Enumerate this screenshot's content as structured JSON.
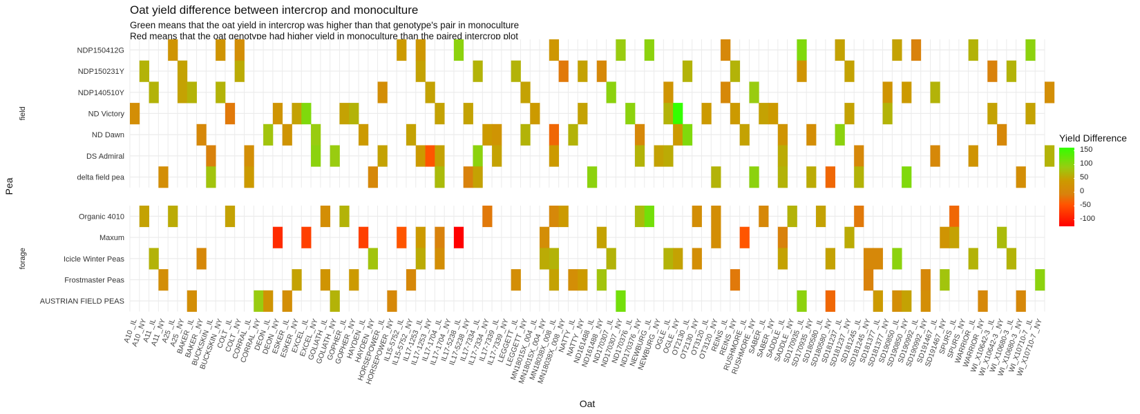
{
  "chart_data": {
    "type": "heatmap",
    "title": "Oat yield difference between intercrop and monoculture",
    "subtitle_lines": [
      "Green means that the oat yield in intercrop was higher than that genotype's pair in monoculture",
      "Red means that the oat genotype had higher yield in monoculture than the paired intercrop plot"
    ],
    "xlabel": "Oat",
    "ylabel": "Pea",
    "x_categories": [
      "A10 _IL",
      "A10 _NY",
      "A11 _IL",
      "A11 _NY",
      "A25 _IL",
      "A25 _NY",
      "BAKER _IL",
      "BAKER _NY",
      "BUCKSKIN _IL",
      "BUCKSKIN _NY",
      "COLT _IL",
      "COLT _NY",
      "CORRAL _IL",
      "CORRAL _NY",
      "DEON _IL",
      "DEON _NY",
      "ESKER _IL",
      "ESKER _NY",
      "EXCEL _IL",
      "EXCEL _NY",
      "GOLIATH _IL",
      "GOLIATH _NY",
      "GOPHER _IL",
      "GOPHER _NY",
      "HAYDEN _IL",
      "HAYDEN _NY",
      "HORSEPOWER _IL",
      "HORSEPOWER _NY",
      "IL15-5752 _IL",
      "IL15-5752 _NY",
      "IL17-1253 _IL",
      "IL17-1253 _NY",
      "IL17-1704 _IL",
      "IL17-1704 _NY",
      "IL17-5238 _IL",
      "IL17-5238 _NY",
      "IL17-7334 _IL",
      "IL17-7334 _NY",
      "IL17-7339 _IL",
      "IL17-7339 _NY",
      "LEGGETT _IL",
      "LEGGETT _NY",
      "MN18015X_004 _IL",
      "MN18015X_004 _NY",
      "MN18038X_008 _IL",
      "MN18038X_008 _NY",
      "NATTY _IL",
      "NATTY _NY",
      "ND161488 _IL",
      "ND161488 _NY",
      "ND170307 _IL",
      "ND170307 _NY",
      "ND170376 _IL",
      "ND170376 _NY",
      "NEWBURG _IL",
      "NEWBURG _NY",
      "OGLE _IL",
      "OGLE _NY",
      "OT2130 _IL",
      "OT2130 _NY",
      "OT3120 _IL",
      "OT3120 _NY",
      "REINS _IL",
      "REINS _NY",
      "RUSHMORE _IL",
      "RUSHMORE _NY",
      "SABER _IL",
      "SABER _NY",
      "SADDLE _IL",
      "SADDLE _NY",
      "SD170935 _IL",
      "SD170935 _NY",
      "SD180580 _IL",
      "SD180580 _NY",
      "SD181237 _IL",
      "SD181237 _NY",
      "SD181245 _IL",
      "SD181245 _NY",
      "SD181377 _IL",
      "SD181377 _NY",
      "SD190850 _IL",
      "SD190850 _NY",
      "SD190992 _IL",
      "SD190992 _NY",
      "SD191467 _IL",
      "SD191467 _NY",
      "SPURS _IL",
      "SPURS _NY",
      "WARRIOR _IL",
      "WARRIOR _NY",
      "WI_X10642-3 _IL",
      "WI_X10642-3 _NY",
      "WI_X10680-3 _IL",
      "WI_X10680-3 _NY",
      "WI_X10710-7 _IL",
      "WI_X10710-7 _NY"
    ],
    "facets": [
      {
        "label": "field",
        "rows": [
          "NDP150412G",
          "NDP150231Y",
          "NDP140510Y",
          "ND Victory",
          "ND Dawn",
          "DS Admiral",
          "delta field pea"
        ],
        "cells": [
          [
            0,
            4,
            0
          ],
          [
            0,
            9,
            0
          ],
          [
            0,
            11,
            -10
          ],
          [
            0,
            28,
            10
          ],
          [
            0,
            30,
            5
          ],
          [
            0,
            34,
            80
          ],
          [
            0,
            44,
            5
          ],
          [
            0,
            51,
            70
          ],
          [
            0,
            54,
            80
          ],
          [
            0,
            62,
            -20
          ],
          [
            0,
            70,
            90
          ],
          [
            0,
            74,
            20
          ],
          [
            0,
            80,
            20
          ],
          [
            0,
            82,
            -30
          ],
          [
            0,
            88,
            40
          ],
          [
            0,
            94,
            80
          ],
          [
            1,
            1,
            40
          ],
          [
            1,
            5,
            20
          ],
          [
            1,
            11,
            30
          ],
          [
            1,
            30,
            20
          ],
          [
            1,
            36,
            40
          ],
          [
            1,
            40,
            40
          ],
          [
            1,
            45,
            -40
          ],
          [
            1,
            47,
            20
          ],
          [
            1,
            49,
            -20
          ],
          [
            1,
            58,
            40
          ],
          [
            1,
            63,
            40
          ],
          [
            1,
            70,
            0
          ],
          [
            1,
            75,
            20
          ],
          [
            1,
            90,
            -30
          ],
          [
            1,
            92,
            40
          ],
          [
            2,
            2,
            40
          ],
          [
            2,
            5,
            20
          ],
          [
            2,
            6,
            40
          ],
          [
            2,
            9,
            40
          ],
          [
            2,
            26,
            -10
          ],
          [
            2,
            31,
            20
          ],
          [
            2,
            41,
            20
          ],
          [
            2,
            50,
            80
          ],
          [
            2,
            56,
            0
          ],
          [
            2,
            62,
            -20
          ],
          [
            2,
            65,
            70
          ],
          [
            2,
            79,
            0
          ],
          [
            2,
            81,
            10
          ],
          [
            2,
            84,
            40
          ],
          [
            2,
            96,
            -10
          ],
          [
            3,
            0,
            -10
          ],
          [
            3,
            10,
            -40
          ],
          [
            3,
            15,
            0
          ],
          [
            3,
            17,
            20
          ],
          [
            3,
            18,
            90
          ],
          [
            3,
            22,
            20
          ],
          [
            3,
            23,
            40
          ],
          [
            3,
            32,
            20
          ],
          [
            3,
            35,
            20
          ],
          [
            3,
            42,
            10
          ],
          [
            3,
            47,
            20
          ],
          [
            3,
            52,
            80
          ],
          [
            3,
            56,
            40
          ],
          [
            3,
            57,
            150
          ],
          [
            3,
            60,
            10
          ],
          [
            3,
            63,
            10
          ],
          [
            3,
            66,
            20
          ],
          [
            3,
            67,
            10
          ],
          [
            3,
            75,
            20
          ],
          [
            3,
            79,
            40
          ],
          [
            3,
            90,
            20
          ],
          [
            3,
            94,
            20
          ],
          [
            4,
            7,
            -20
          ],
          [
            4,
            14,
            60
          ],
          [
            4,
            16,
            0
          ],
          [
            4,
            19,
            70
          ],
          [
            4,
            24,
            10
          ],
          [
            4,
            29,
            20
          ],
          [
            4,
            37,
            10
          ],
          [
            4,
            38,
            0
          ],
          [
            4,
            41,
            40
          ],
          [
            4,
            44,
            -60
          ],
          [
            4,
            46,
            40
          ],
          [
            4,
            53,
            -20
          ],
          [
            4,
            57,
            10
          ],
          [
            4,
            58,
            90
          ],
          [
            4,
            64,
            20
          ],
          [
            4,
            68,
            0
          ],
          [
            4,
            71,
            -10
          ],
          [
            4,
            74,
            80
          ],
          [
            4,
            91,
            -20
          ],
          [
            5,
            8,
            -30
          ],
          [
            5,
            12,
            -10
          ],
          [
            5,
            19,
            80
          ],
          [
            5,
            21,
            70
          ],
          [
            5,
            26,
            20
          ],
          [
            5,
            30,
            10
          ],
          [
            5,
            31,
            -80
          ],
          [
            5,
            32,
            20
          ],
          [
            5,
            36,
            80
          ],
          [
            5,
            38,
            20
          ],
          [
            5,
            44,
            10
          ],
          [
            5,
            53,
            40
          ],
          [
            5,
            55,
            20
          ],
          [
            5,
            56,
            30
          ],
          [
            5,
            68,
            30
          ],
          [
            5,
            76,
            -20
          ],
          [
            5,
            84,
            -20
          ],
          [
            5,
            88,
            0
          ],
          [
            5,
            96,
            40
          ],
          [
            6,
            3,
            -10
          ],
          [
            6,
            8,
            60
          ],
          [
            6,
            12,
            10
          ],
          [
            6,
            25,
            -20
          ],
          [
            6,
            32,
            50
          ],
          [
            6,
            35,
            -30
          ],
          [
            6,
            36,
            20
          ],
          [
            6,
            48,
            80
          ],
          [
            6,
            61,
            40
          ],
          [
            6,
            65,
            80
          ],
          [
            6,
            68,
            40
          ],
          [
            6,
            71,
            30
          ],
          [
            6,
            73,
            -60
          ],
          [
            6,
            76,
            40
          ],
          [
            6,
            81,
            90
          ],
          [
            6,
            93,
            -10
          ]
        ]
      },
      {
        "label": "forage",
        "rows": [
          "Organic 4010",
          "Maxum",
          "Icicle Winter Peas",
          "Frostmaster Peas",
          "AUSTRIAN FIELD PEAS"
        ],
        "cells": [
          [
            0,
            1,
            20
          ],
          [
            0,
            4,
            30
          ],
          [
            0,
            10,
            20
          ],
          [
            0,
            20,
            -10
          ],
          [
            0,
            22,
            40
          ],
          [
            0,
            37,
            -40
          ],
          [
            0,
            44,
            -20
          ],
          [
            0,
            45,
            10
          ],
          [
            0,
            53,
            50
          ],
          [
            0,
            54,
            100
          ],
          [
            0,
            59,
            -10
          ],
          [
            0,
            61,
            -10
          ],
          [
            0,
            66,
            -20
          ],
          [
            0,
            69,
            40
          ],
          [
            0,
            72,
            20
          ],
          [
            0,
            76,
            -40
          ],
          [
            0,
            86,
            -60
          ],
          [
            1,
            15,
            -100
          ],
          [
            1,
            18,
            -90
          ],
          [
            1,
            24,
            -90
          ],
          [
            1,
            28,
            -80
          ],
          [
            1,
            30,
            10
          ],
          [
            1,
            32,
            -30
          ],
          [
            1,
            34,
            -120
          ],
          [
            1,
            43,
            -10
          ],
          [
            1,
            49,
            20
          ],
          [
            1,
            61,
            -10
          ],
          [
            1,
            64,
            -80
          ],
          [
            1,
            68,
            -30
          ],
          [
            1,
            75,
            30
          ],
          [
            1,
            85,
            0
          ],
          [
            1,
            86,
            20
          ],
          [
            1,
            91,
            50
          ],
          [
            2,
            2,
            40
          ],
          [
            2,
            7,
            -20
          ],
          [
            2,
            25,
            60
          ],
          [
            2,
            30,
            30
          ],
          [
            2,
            32,
            -10
          ],
          [
            2,
            43,
            30
          ],
          [
            2,
            44,
            40
          ],
          [
            2,
            50,
            40
          ],
          [
            2,
            56,
            40
          ],
          [
            2,
            57,
            20
          ],
          [
            2,
            59,
            -10
          ],
          [
            2,
            68,
            20
          ],
          [
            2,
            73,
            20
          ],
          [
            2,
            77,
            -20
          ],
          [
            2,
            78,
            -20
          ],
          [
            2,
            80,
            80
          ],
          [
            2,
            88,
            40
          ],
          [
            2,
            92,
            40
          ],
          [
            3,
            3,
            -10
          ],
          [
            3,
            17,
            20
          ],
          [
            3,
            20,
            0
          ],
          [
            3,
            23,
            10
          ],
          [
            3,
            29,
            -20
          ],
          [
            3,
            40,
            -10
          ],
          [
            3,
            44,
            20
          ],
          [
            3,
            46,
            -10
          ],
          [
            3,
            47,
            10
          ],
          [
            3,
            49,
            60
          ],
          [
            3,
            63,
            -40
          ],
          [
            3,
            77,
            -30
          ],
          [
            3,
            83,
            -20
          ],
          [
            3,
            85,
            60
          ],
          [
            3,
            95,
            80
          ],
          [
            4,
            6,
            -10
          ],
          [
            4,
            13,
            70
          ],
          [
            4,
            14,
            0
          ],
          [
            4,
            16,
            -10
          ],
          [
            4,
            21,
            40
          ],
          [
            4,
            27,
            -20
          ],
          [
            4,
            51,
            100
          ],
          [
            4,
            70,
            80
          ],
          [
            4,
            73,
            -60
          ],
          [
            4,
            78,
            10
          ],
          [
            4,
            80,
            -10
          ],
          [
            4,
            81,
            20
          ],
          [
            4,
            83,
            -10
          ],
          [
            4,
            89,
            -20
          ],
          [
            4,
            93,
            -20
          ]
        ]
      }
    ],
    "legend": {
      "title": "Yield Difference",
      "ticks": [
        "150",
        "100",
        "50",
        "0",
        "-50",
        "-100"
      ],
      "colors": [
        "#ff0000",
        "#ff5500",
        "#d9820c",
        "#cc9a00",
        "#99cc10",
        "#33ff00"
      ]
    }
  }
}
